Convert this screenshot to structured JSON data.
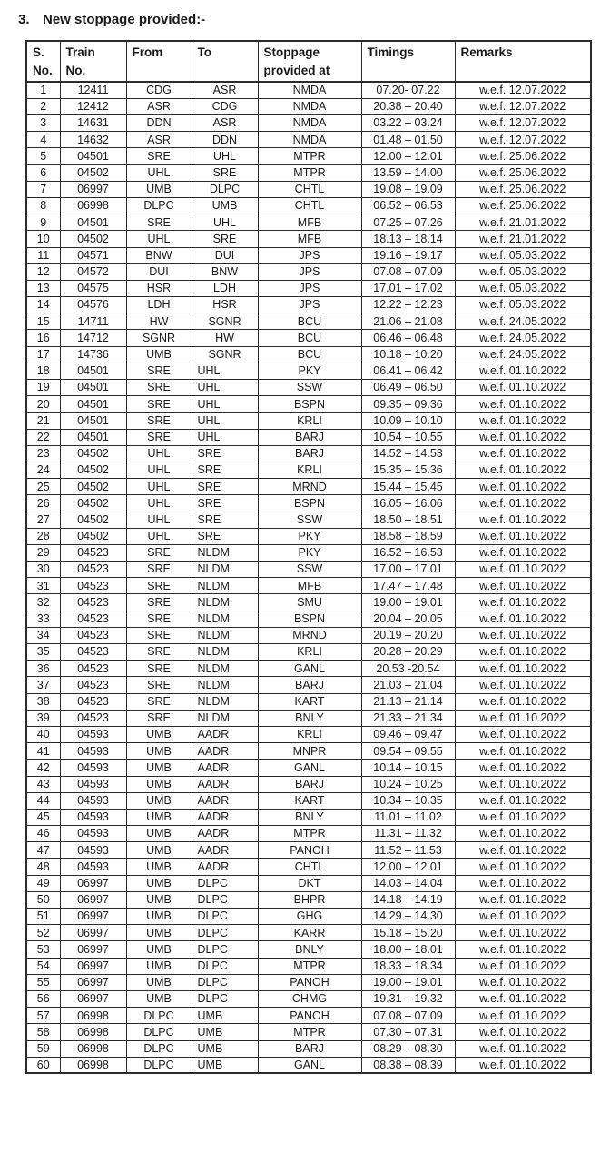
{
  "doc": {
    "section_number": "3.",
    "title": "New stoppage provided:-"
  },
  "table": {
    "columns": [
      "sno",
      "train_no",
      "from",
      "to",
      "stoppage_provided_at",
      "timings",
      "remarks"
    ],
    "headers": [
      "S.\nNo.",
      "Train\nNo.",
      "From",
      "To",
      "Stoppage\nprovided at",
      "Timings",
      "Remarks"
    ],
    "rows": [
      [
        "1",
        "12411",
        "CDG",
        "ASR",
        "NMDA",
        "07.20- 07.22",
        "w.e.f. 12.07.2022"
      ],
      [
        "2",
        "12412",
        "ASR",
        "CDG",
        "NMDA",
        "20.38 – 20.40",
        "w.e.f. 12.07.2022"
      ],
      [
        "3",
        "14631",
        "DDN",
        "ASR",
        "NMDA",
        "03.22 – 03.24",
        "w.e.f. 12.07.2022"
      ],
      [
        "4",
        "14632",
        "ASR",
        "DDN",
        "NMDA",
        "01.48 – 01.50",
        "w.e.f. 12.07.2022"
      ],
      [
        "5",
        "04501",
        "SRE",
        "UHL",
        "MTPR",
        "12.00 – 12.01",
        "w.e.f. 25.06.2022"
      ],
      [
        "6",
        "04502",
        "UHL",
        "SRE",
        "MTPR",
        "13.59 – 14.00",
        "w.e.f. 25.06.2022"
      ],
      [
        "7",
        "06997",
        "UMB",
        "DLPC",
        "CHTL",
        "19.08 – 19.09",
        "w.e.f. 25.06.2022"
      ],
      [
        "8",
        "06998",
        "DLPC",
        "UMB",
        "CHTL",
        "06.52 – 06.53",
        "w.e.f. 25.06.2022"
      ],
      [
        "9",
        "04501",
        "SRE",
        "UHL",
        "MFB",
        "07.25 – 07.26",
        "w.e.f. 21.01.2022"
      ],
      [
        "10",
        "04502",
        "UHL",
        "SRE",
        "MFB",
        "18.13 – 18.14",
        "w.e.f. 21.01.2022"
      ],
      [
        "11",
        "04571",
        "BNW",
        "DUI",
        "JPS",
        "19.16 – 19.17",
        "w.e.f. 05.03.2022"
      ],
      [
        "12",
        "04572",
        "DUI",
        "BNW",
        "JPS",
        "07.08 – 07.09",
        "w.e.f. 05.03.2022"
      ],
      [
        "13",
        "04575",
        "HSR",
        "LDH",
        "JPS",
        "17.01 – 17.02",
        "w.e.f. 05.03.2022"
      ],
      [
        "14",
        "04576",
        "LDH",
        "HSR",
        "JPS",
        "12.22 – 12.23",
        "w.e.f. 05.03.2022"
      ],
      [
        "15",
        "14711",
        "HW",
        "SGNR",
        "BCU",
        "21.06 – 21.08",
        "w.e.f. 24.05.2022"
      ],
      [
        "16",
        "14712",
        "SGNR",
        "HW",
        "BCU",
        "06.46 – 06.48",
        "w.e.f. 24.05.2022"
      ],
      [
        "17",
        "14736",
        "UMB",
        "SGNR",
        "BCU",
        "10.18 – 10.20",
        "w.e.f. 24.05.2022"
      ],
      [
        "18",
        "04501",
        "SRE",
        "UHL",
        "PKY",
        "06.41 – 06.42",
        "w.e.f. 01.10.2022"
      ],
      [
        "19",
        "04501",
        "SRE",
        "UHL",
        "SSW",
        "06.49 – 06.50",
        "w.e.f. 01.10.2022"
      ],
      [
        "20",
        "04501",
        "SRE",
        "UHL",
        "BSPN",
        "09.35 – 09.36",
        "w.e.f. 01.10.2022"
      ],
      [
        "21",
        "04501",
        "SRE",
        "UHL",
        "KRLI",
        "10.09 – 10.10",
        "w.e.f. 01.10.2022"
      ],
      [
        "22",
        "04501",
        "SRE",
        "UHL",
        "BARJ",
        "10.54 – 10.55",
        "w.e.f. 01.10.2022"
      ],
      [
        "23",
        "04502",
        "UHL",
        "SRE",
        "BARJ",
        "14.52 – 14.53",
        "w.e.f. 01.10.2022"
      ],
      [
        "24",
        "04502",
        "UHL",
        "SRE",
        "KRLI",
        "15.35 – 15.36",
        "w.e.f. 01.10.2022"
      ],
      [
        "25",
        "04502",
        "UHL",
        "SRE",
        "MRND",
        "15.44 – 15.45",
        "w.e.f. 01.10.2022"
      ],
      [
        "26",
        "04502",
        "UHL",
        "SRE",
        "BSPN",
        "16.05 – 16.06",
        "w.e.f. 01.10.2022"
      ],
      [
        "27",
        "04502",
        "UHL",
        "SRE",
        "SSW",
        "18.50 – 18.51",
        "w.e.f. 01.10.2022"
      ],
      [
        "28",
        "04502",
        "UHL",
        "SRE",
        "PKY",
        "18.58 – 18.59",
        "w.e.f. 01.10.2022"
      ],
      [
        "29",
        "04523",
        "SRE",
        "NLDM",
        "PKY",
        "16.52 – 16.53",
        "w.e.f. 01.10.2022"
      ],
      [
        "30",
        "04523",
        "SRE",
        "NLDM",
        "SSW",
        "17.00 – 17.01",
        "w.e.f. 01.10.2022"
      ],
      [
        "31",
        "04523",
        "SRE",
        "NLDM",
        "MFB",
        "17.47 – 17.48",
        "w.e.f. 01.10.2022"
      ],
      [
        "32",
        "04523",
        "SRE",
        "NLDM",
        "SMU",
        "19.00 – 19.01",
        "w.e.f. 01.10.2022"
      ],
      [
        "33",
        "04523",
        "SRE",
        "NLDM",
        "BSPN",
        "20.04 – 20.05",
        "w.e.f. 01.10.2022"
      ],
      [
        "34",
        "04523",
        "SRE",
        "NLDM",
        "MRND",
        "20.19 – 20.20",
        "w.e.f. 01.10.2022"
      ],
      [
        "35",
        "04523",
        "SRE",
        "NLDM",
        "KRLI",
        "20.28 – 20.29",
        "w.e.f. 01.10.2022"
      ],
      [
        "36",
        "04523",
        "SRE",
        "NLDM",
        "GANL",
        "20.53 -20.54",
        "w.e.f. 01.10.2022"
      ],
      [
        "37",
        "04523",
        "SRE",
        "NLDM",
        "BARJ",
        "21.03 – 21.04",
        "w.e.f. 01.10.2022"
      ],
      [
        "38",
        "04523",
        "SRE",
        "NLDM",
        "KART",
        "21.13 – 21.14",
        "w.e.f. 01.10.2022"
      ],
      [
        "39",
        "04523",
        "SRE",
        "NLDM",
        "BNLY",
        "21.33 – 21.34",
        "w.e.f. 01.10.2022"
      ],
      [
        "40",
        "04593",
        "UMB",
        "AADR",
        "KRLI",
        "09.46 – 09.47",
        "w.e.f. 01.10.2022"
      ],
      [
        "41",
        "04593",
        "UMB",
        "AADR",
        "MNPR",
        "09.54 – 09.55",
        "w.e.f. 01.10.2022"
      ],
      [
        "42",
        "04593",
        "UMB",
        "AADR",
        "GANL",
        "10.14 – 10.15",
        "w.e.f. 01.10.2022"
      ],
      [
        "43",
        "04593",
        "UMB",
        "AADR",
        "BARJ",
        "10.24 – 10.25",
        "w.e.f. 01.10.2022"
      ],
      [
        "44",
        "04593",
        "UMB",
        "AADR",
        "KART",
        "10.34 – 10.35",
        "w.e.f. 01.10.2022"
      ],
      [
        "45",
        "04593",
        "UMB",
        "AADR",
        "BNLY",
        "11.01 – 11.02",
        "w.e.f. 01.10.2022"
      ],
      [
        "46",
        "04593",
        "UMB",
        "AADR",
        "MTPR",
        "11.31 – 11.32",
        "w.e.f. 01.10.2022"
      ],
      [
        "47",
        "04593",
        "UMB",
        "AADR",
        "PANOH",
        "11.52 – 11.53",
        "w.e.f. 01.10.2022"
      ],
      [
        "48",
        "04593",
        "UMB",
        "AADR",
        "CHTL",
        "12.00 – 12.01",
        "w.e.f. 01.10.2022"
      ],
      [
        "49",
        "06997",
        "UMB",
        "DLPC",
        "DKT",
        "14.03 – 14.04",
        "w.e.f. 01.10.2022"
      ],
      [
        "50",
        "06997",
        "UMB",
        "DLPC",
        "BHPR",
        "14.18 – 14.19",
        "w.e.f. 01.10.2022"
      ],
      [
        "51",
        "06997",
        "UMB",
        "DLPC",
        "GHG",
        "14.29 – 14.30",
        "w.e.f. 01.10.2022"
      ],
      [
        "52",
        "06997",
        "UMB",
        "DLPC",
        "KARR",
        "15.18 – 15.20",
        "w.e.f. 01.10.2022"
      ],
      [
        "53",
        "06997",
        "UMB",
        "DLPC",
        "BNLY",
        "18.00 – 18.01",
        "w.e.f. 01.10.2022"
      ],
      [
        "54",
        "06997",
        "UMB",
        "DLPC",
        "MTPR",
        "18.33 – 18.34",
        "w.e.f. 01.10.2022"
      ],
      [
        "55",
        "06997",
        "UMB",
        "DLPC",
        "PANOH",
        "19.00 – 19.01",
        "w.e.f. 01.10.2022"
      ],
      [
        "56",
        "06997",
        "UMB",
        "DLPC",
        "CHMG",
        "19.31 – 19.32",
        "w.e.f. 01.10.2022"
      ],
      [
        "57",
        "06998",
        "DLPC",
        "UMB",
        "PANOH",
        "07.08 – 07.09",
        "w.e.f. 01.10.2022"
      ],
      [
        "58",
        "06998",
        "DLPC",
        "UMB",
        "MTPR",
        "07.30 – 07.31",
        "w.e.f. 01.10.2022"
      ],
      [
        "59",
        "06998",
        "DLPC",
        "UMB",
        "BARJ",
        "08.29 – 08.30",
        "w.e.f. 01.10.2022"
      ],
      [
        "60",
        "06998",
        "DLPC",
        "UMB",
        "GANL",
        "08.38 – 08.39",
        "w.e.f. 01.10.2022"
      ]
    ]
  }
}
